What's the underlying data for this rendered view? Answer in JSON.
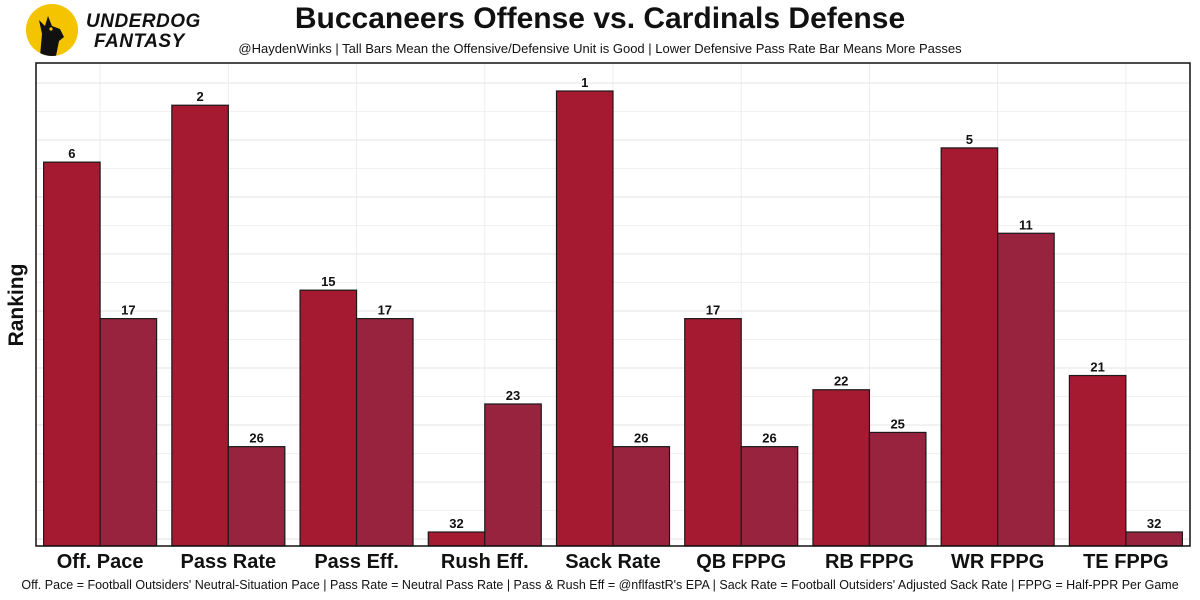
{
  "brand": {
    "line1": "UNDERDOG",
    "line2": "FANTASY",
    "accent": "#f5c400"
  },
  "header": {
    "title": "Buccaneers Offense vs. Cardinals Defense",
    "subtitle": "@HaydenWinks | Tall Bars Mean the Offensive/Defensive Unit is Good | Lower Defensive Pass Rate Bar Means More Passes"
  },
  "footer": {
    "note": "Off. Pace = Football Outsiders' Neutral-Situation Pace | Pass Rate = Neutral Pass Rate | Pass & Rush Eff = @nflfastR's EPA | Sack Rate = Football Outsiders' Adjusted Sack Rate | FPPG = Half-PPR Per Game"
  },
  "chart_data": {
    "type": "bar",
    "title": "Buccaneers Offense vs. Cardinals Defense",
    "xlabel": "",
    "ylabel": "Ranking",
    "y_scale": "rank (1 = tallest, 32 = shortest)",
    "rank_range": [
      1,
      32
    ],
    "grid": true,
    "categories": [
      "Off. Pace",
      "Pass Rate",
      "Pass Eff.",
      "Rush Eff.",
      "Sack Rate",
      "QB FPPG",
      "RB FPPG",
      "WR FPPG",
      "TE FPPG"
    ],
    "series": [
      {
        "name": "Buccaneers Offense",
        "color": "#a51931",
        "values": [
          6,
          2,
          15,
          32,
          1,
          17,
          22,
          5,
          21
        ]
      },
      {
        "name": "Cardinals Defense",
        "color": "#97233f",
        "values": [
          17,
          26,
          17,
          23,
          26,
          26,
          25,
          11,
          32
        ]
      }
    ]
  }
}
